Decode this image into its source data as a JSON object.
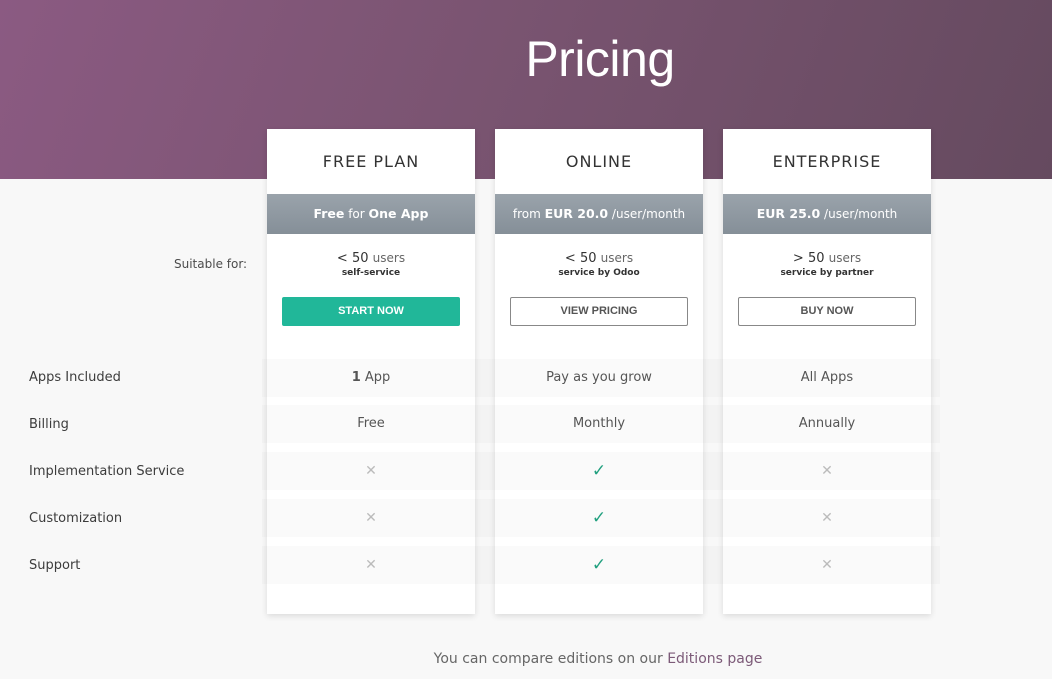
{
  "header": {
    "title": "Pricing"
  },
  "suitable_label": "Suitable for:",
  "features": [
    "Apps Included",
    "Billing",
    "Implementation Service",
    "Customization",
    "Support"
  ],
  "plans": [
    {
      "name": "FREE PLAN",
      "price_pre": "",
      "price_bold": "Free",
      "price_mid": " for ",
      "price_bold2": "One App",
      "price_post": "",
      "users_num": "< 50",
      "users_word": "users",
      "service": "self-service",
      "button": "START NOW",
      "cells": {
        "apps_num": "1",
        "apps": " App",
        "billing": "Free",
        "impl": "✕",
        "custom": "✕",
        "support": "✕"
      }
    },
    {
      "name": "ONLINE",
      "price_pre": "from ",
      "price_bold": "EUR 20.0",
      "price_mid": "",
      "price_bold2": "",
      "price_post": " /user/month",
      "users_num": "< 50",
      "users_word": "users",
      "service": "service by Odoo",
      "button": "VIEW PRICING",
      "cells": {
        "apps_num": "",
        "apps": "Pay as you grow",
        "billing": "Monthly",
        "impl": "✓",
        "custom": "✓",
        "support": "✓"
      }
    },
    {
      "name": "ENTERPRISE",
      "price_pre": "",
      "price_bold": "EUR 25.0",
      "price_mid": "",
      "price_bold2": "",
      "price_post": " /user/month",
      "users_num": "> 50",
      "users_word": "users",
      "service": "service by partner",
      "button": "BUY NOW",
      "cells": {
        "apps_num": "",
        "apps": "All Apps",
        "billing": "Annually",
        "impl": "✕",
        "custom": "✕",
        "support": "✕"
      }
    }
  ],
  "footer": {
    "text": "You can compare editions on our ",
    "link": "Editions page"
  },
  "colors": {
    "accent": "#21b799",
    "header_start": "#8b5a82",
    "header_end": "#654a5f",
    "check": "#21a07f"
  }
}
